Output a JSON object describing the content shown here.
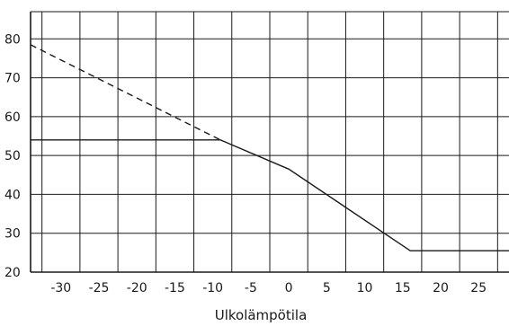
{
  "chart_data": {
    "type": "line",
    "title": "",
    "xlabel": "Ulkolämpötila",
    "ylabel": "",
    "xlim": [
      -34,
      29
    ],
    "ylim": [
      20,
      87
    ],
    "x_ticks": [
      -30,
      -25,
      -20,
      -15,
      -10,
      -5,
      0,
      5,
      10,
      15,
      20,
      25
    ],
    "x_tick_labels": [
      "-30",
      "-25",
      "-20",
      "-15",
      "-10",
      "-5",
      "0",
      "5",
      "10",
      "15",
      "20",
      "25"
    ],
    "x_gridlines": [
      -32.5,
      -27.5,
      -22.5,
      -17.5,
      -12.5,
      -7.5,
      -2.5,
      2.5,
      7.5,
      12.5,
      17.5,
      22.5,
      27.5
    ],
    "y_ticks": [
      20,
      30,
      40,
      50,
      60,
      70,
      80
    ],
    "y_tick_labels": [
      "20",
      "30",
      "40",
      "50",
      "60",
      "70",
      "80"
    ],
    "grid": true,
    "legend": "none",
    "series": [
      {
        "style": "solid",
        "x": [
          -34,
          -9,
          0,
          16,
          29
        ],
        "y": [
          54,
          54,
          46.5,
          25.5,
          25.5
        ]
      },
      {
        "style": "dashed",
        "x": [
          -34,
          -9
        ],
        "y": [
          78.5,
          54
        ]
      }
    ],
    "colors": {
      "line": "#1a1a1a",
      "grid": "#1a1a1a"
    }
  }
}
